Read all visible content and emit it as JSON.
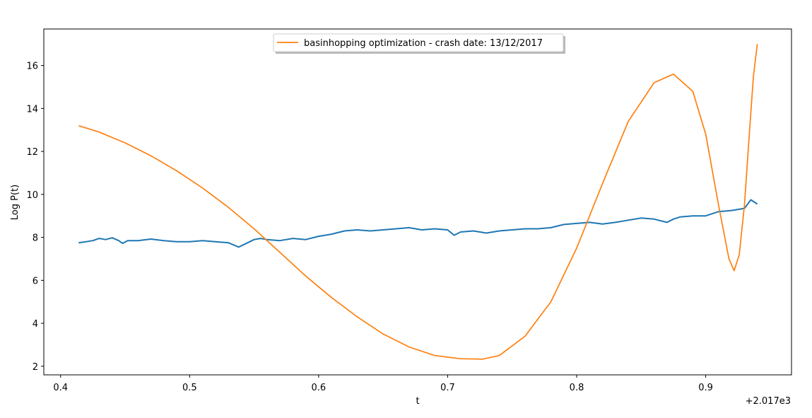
{
  "chart_data": {
    "type": "line",
    "xlabel": "t",
    "ylabel": "Log P(t)",
    "x_offset_label": "+2.017e3",
    "xlim": [
      0.387,
      0.9665
    ],
    "ylim": [
      1.6,
      17.7
    ],
    "x_ticks": [
      0.4,
      0.5,
      0.6,
      0.7,
      0.8,
      0.9
    ],
    "x_tick_labels": [
      "0.4",
      "0.5",
      "0.6",
      "0.7",
      "0.8",
      "0.9"
    ],
    "y_ticks": [
      2,
      4,
      6,
      8,
      10,
      12,
      14,
      16
    ],
    "y_tick_labels": [
      "2",
      "4",
      "6",
      "8",
      "10",
      "12",
      "14",
      "16"
    ],
    "grid": false,
    "legend_position": "top-center",
    "series": [
      {
        "color": "#1f77b4",
        "x": [
          0.414,
          0.42,
          0.425,
          0.43,
          0.435,
          0.44,
          0.445,
          0.448,
          0.452,
          0.46,
          0.47,
          0.48,
          0.49,
          0.5,
          0.51,
          0.52,
          0.53,
          0.538,
          0.545,
          0.55,
          0.555,
          0.56,
          0.57,
          0.58,
          0.59,
          0.6,
          0.61,
          0.62,
          0.63,
          0.64,
          0.65,
          0.66,
          0.67,
          0.68,
          0.69,
          0.7,
          0.705,
          0.71,
          0.72,
          0.73,
          0.74,
          0.75,
          0.76,
          0.77,
          0.78,
          0.79,
          0.8,
          0.81,
          0.82,
          0.83,
          0.84,
          0.85,
          0.86,
          0.87,
          0.875,
          0.88,
          0.89,
          0.9,
          0.91,
          0.92,
          0.93,
          0.935,
          0.94
        ],
        "y": [
          7.75,
          7.8,
          7.85,
          7.95,
          7.9,
          7.98,
          7.85,
          7.72,
          7.85,
          7.85,
          7.92,
          7.85,
          7.8,
          7.8,
          7.85,
          7.8,
          7.75,
          7.55,
          7.75,
          7.9,
          7.95,
          7.9,
          7.85,
          7.95,
          7.9,
          8.05,
          8.15,
          8.3,
          8.35,
          8.3,
          8.35,
          8.4,
          8.45,
          8.35,
          8.4,
          8.35,
          8.1,
          8.25,
          8.3,
          8.2,
          8.3,
          8.35,
          8.4,
          8.4,
          8.45,
          8.6,
          8.65,
          8.7,
          8.62,
          8.7,
          8.8,
          8.9,
          8.85,
          8.7,
          8.85,
          8.95,
          9.0,
          9.0,
          9.2,
          9.25,
          9.35,
          9.75,
          9.55
        ]
      },
      {
        "name": "basinhopping optimization - crash date: 13/12/2017",
        "color": "#ff7f0e",
        "x": [
          0.414,
          0.43,
          0.45,
          0.47,
          0.49,
          0.51,
          0.53,
          0.55,
          0.57,
          0.59,
          0.61,
          0.63,
          0.65,
          0.67,
          0.69,
          0.71,
          0.727,
          0.74,
          0.76,
          0.78,
          0.8,
          0.82,
          0.84,
          0.86,
          0.875,
          0.89,
          0.9,
          0.91,
          0.918,
          0.922,
          0.926,
          0.93,
          0.934,
          0.937,
          0.94
        ],
        "y": [
          13.2,
          12.9,
          12.4,
          11.8,
          11.1,
          10.3,
          9.4,
          8.4,
          7.3,
          6.2,
          5.2,
          4.3,
          3.5,
          2.9,
          2.5,
          2.35,
          2.33,
          2.5,
          3.4,
          5.0,
          7.5,
          10.5,
          13.4,
          15.2,
          15.6,
          14.8,
          12.8,
          9.5,
          7.0,
          6.45,
          7.2,
          9.5,
          13.0,
          15.5,
          17.0
        ]
      }
    ]
  }
}
